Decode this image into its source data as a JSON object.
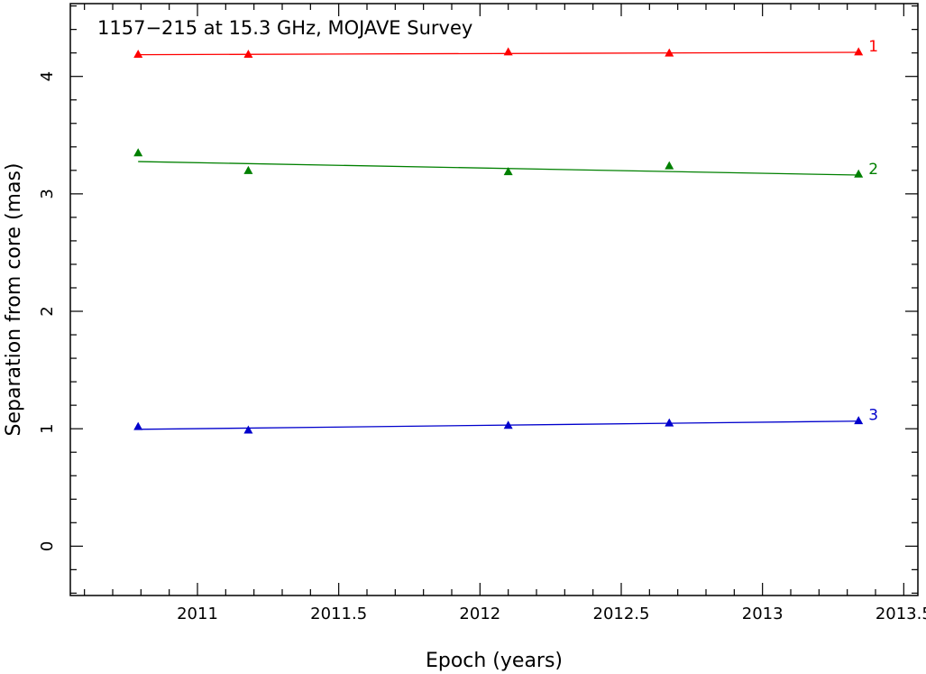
{
  "chart_data": {
    "type": "scatter",
    "title": "1157−215 at 15.3 GHz, MOJAVE Survey",
    "xlabel": "Epoch (years)",
    "ylabel": "Separation from core (mas)",
    "xlim": [
      2010.55,
      2013.55
    ],
    "ylim": [
      -0.42,
      4.62
    ],
    "x_ticks": [
      2011,
      2011.5,
      2012,
      2012.5,
      2013,
      2013.5
    ],
    "x_tick_labels": [
      "2011",
      "2011.5",
      "2012",
      "2012.5",
      "2013",
      "2013.5"
    ],
    "y_ticks": [
      0,
      1,
      2,
      3,
      4
    ],
    "y_tick_labels": [
      "0",
      "1",
      "2",
      "3",
      "4"
    ],
    "grid": false,
    "legend": "none",
    "marker": "triangle",
    "series": [
      {
        "name": "1",
        "color": "#ff0000",
        "x": [
          2010.79,
          2011.18,
          2012.1,
          2012.67,
          2013.34
        ],
        "y": [
          4.19,
          4.19,
          4.21,
          4.2,
          4.21
        ],
        "fit": [
          [
            2010.79,
            4.185
          ],
          [
            2013.34,
            4.205
          ]
        ]
      },
      {
        "name": "2",
        "color": "#008000",
        "x": [
          2010.79,
          2011.18,
          2012.1,
          2012.67,
          2013.34
        ],
        "y": [
          3.35,
          3.2,
          3.19,
          3.24,
          3.17
        ],
        "fit": [
          [
            2010.79,
            3.275
          ],
          [
            2013.34,
            3.16
          ]
        ]
      },
      {
        "name": "3",
        "color": "#0000cc",
        "x": [
          2010.79,
          2011.18,
          2012.1,
          2012.67,
          2013.34
        ],
        "y": [
          1.02,
          0.99,
          1.03,
          1.05,
          1.07
        ],
        "fit": [
          [
            2010.79,
            0.995
          ],
          [
            2013.34,
            1.065
          ]
        ]
      }
    ]
  }
}
